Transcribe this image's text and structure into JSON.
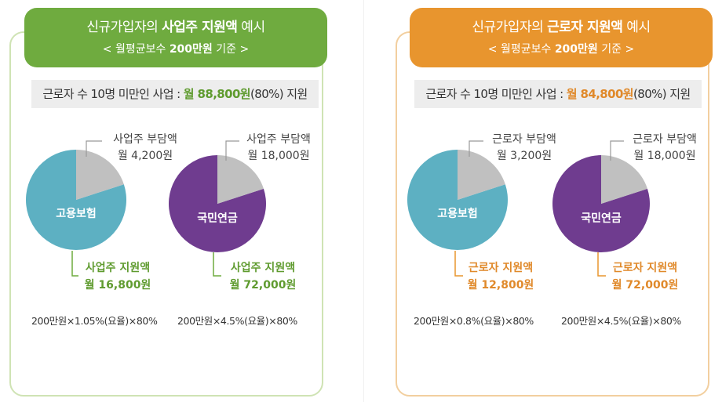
{
  "employer_panel": {
    "title_pre": "신규가입자의 ",
    "title_bold": "사업주 지원액",
    "title_post": " 예시",
    "subtitle_pre": "< 월평균보수 ",
    "subtitle_bold": "200만원",
    "subtitle_post": " 기준 >",
    "summary_pre": "근로자 수 10명 미만인 사업 : ",
    "summary_amount": "월 88,800원",
    "summary_post": "(80%) 지원",
    "charts": [
      {
        "label": "고용보험",
        "burden_label": "사업주 부담액",
        "burden_amount": "월 4,200원",
        "support_label": "사업주 지원액",
        "support_amount": "월 16,800원",
        "formula": "200만원×1.05%(요율)×80%",
        "pie_color": "#5db0c2",
        "support_share": 0.8
      },
      {
        "label": "국민연금",
        "burden_label": "사업주 부담액",
        "burden_amount": "월 18,000원",
        "support_label": "사업주 지원액",
        "support_amount": "월 72,000원",
        "formula": "200만원×4.5%(요율)×80%",
        "pie_color": "#6f3c8f",
        "support_share": 0.8
      }
    ]
  },
  "worker_panel": {
    "title_pre": "신규가입자의 ",
    "title_bold": "근로자 지원액",
    "title_post": " 예시",
    "subtitle_pre": "< 월평균보수 ",
    "subtitle_bold": "200만원",
    "subtitle_post": " 기준 >",
    "summary_pre": "근로자 수 10명 미만인 사업 : ",
    "summary_amount": "월 84,800원",
    "summary_post": "(80%) 지원",
    "charts": [
      {
        "label": "고용보험",
        "burden_label": "근로자 부담액",
        "burden_amount": "월 3,200원",
        "support_label": "근로자 지원액",
        "support_amount": "월 12,800원",
        "formula": "200만원×0.8%(요율)×80%",
        "pie_color": "#5db0c2",
        "support_share": 0.8
      },
      {
        "label": "국민연금",
        "burden_label": "근로자 부담액",
        "burden_amount": "월 18,000원",
        "support_label": "근로자 지원액",
        "support_amount": "월 72,000원",
        "formula": "200만원×4.5%(요율)×80%",
        "pie_color": "#6f3c8f",
        "support_share": 0.8
      }
    ]
  },
  "colors": {
    "green_accent": "#6fab3f",
    "orange_accent": "#e8952e",
    "burden_slice": "#c0c0c0"
  }
}
